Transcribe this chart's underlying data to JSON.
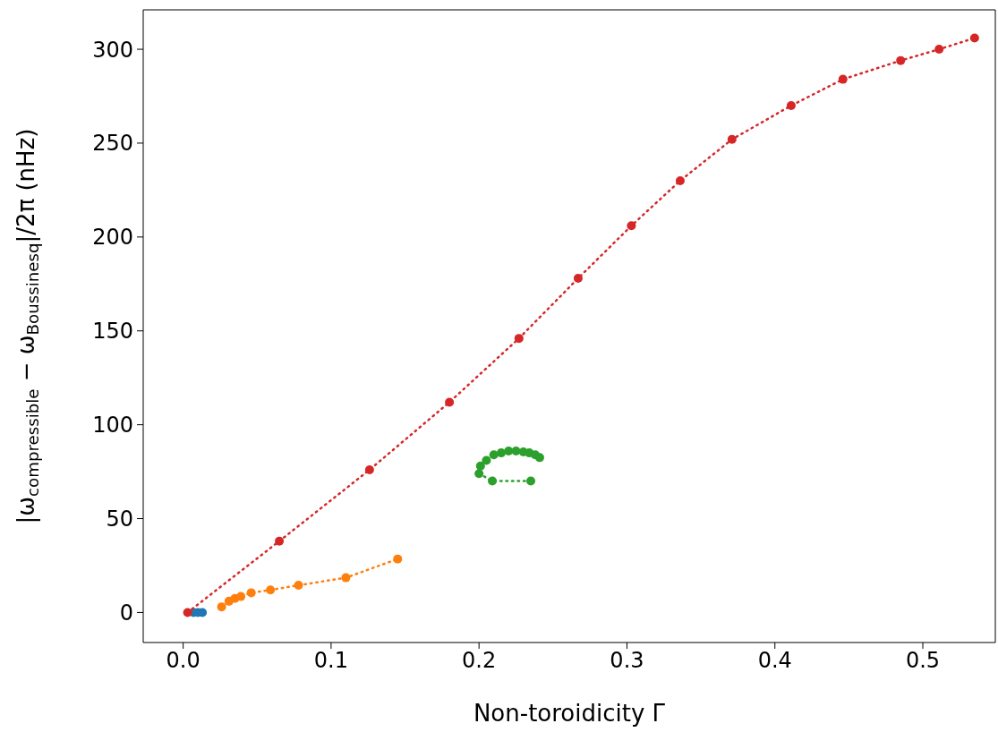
{
  "chart_data": {
    "type": "line",
    "xlabel": "Non-toroidicity Γ",
    "ylabel": "|ω$_{compressible}$ − ω$_{Boussinesq}$|/2π (nHz)",
    "xlim": [
      -0.027,
      0.549
    ],
    "ylim": [
      -16,
      321
    ],
    "xticks": [
      {
        "value": 0,
        "label": "0.0"
      },
      0.1,
      0.2,
      0.3,
      0.4,
      0.5
    ],
    "yticks": [
      0,
      50,
      100,
      150,
      200,
      250,
      300
    ],
    "grid": false,
    "legend": false,
    "marker": "circle",
    "line_style": "dotted",
    "series": [
      {
        "type": "scatter",
        "color": "#1f77b4",
        "x": [
          0.007,
          0.01,
          0.013
        ],
        "values": [
          0,
          0,
          0
        ]
      },
      {
        "color": "#ff7f0e",
        "x": [
          0.026,
          0.031,
          0.035,
          0.039,
          0.046,
          0.059,
          0.078,
          0.11,
          0.145
        ],
        "values": [
          3,
          6,
          7.5,
          8.5,
          10.5,
          12,
          14.5,
          18.5,
          28.5
        ]
      },
      {
        "color": "#2ca02c",
        "x": [
          0.235,
          0.209,
          0.2,
          0.201,
          0.205,
          0.21,
          0.215,
          0.22,
          0.225,
          0.23,
          0.234,
          0.238,
          0.241
        ],
        "values": [
          70,
          70,
          74,
          78,
          81,
          84,
          85,
          86,
          86,
          85.5,
          85,
          84,
          82.5
        ]
      },
      {
        "color": "#d62728",
        "x": [
          0.003,
          0.065,
          0.126,
          0.18,
          0.227,
          0.267,
          0.303,
          0.336,
          0.371,
          0.411,
          0.446,
          0.485,
          0.511,
          0.535
        ],
        "values": [
          0,
          38,
          76,
          112,
          146,
          178,
          206,
          230,
          252,
          270,
          284,
          294,
          300,
          306
        ]
      }
    ]
  }
}
